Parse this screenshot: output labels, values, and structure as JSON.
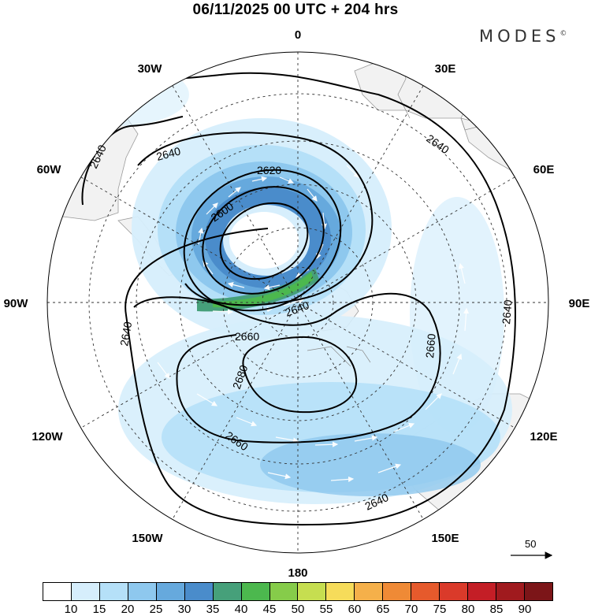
{
  "title": "06/11/2025  00 UTC  + 204 hrs",
  "brand": "MODES",
  "brand_mark": "©",
  "longitude_labels": [
    "0",
    "30E",
    "60E",
    "90E",
    "120E",
    "150E",
    "180",
    "150W",
    "120W",
    "90W",
    "60W",
    "30W"
  ],
  "contour_labels": [
    "2640",
    "2640",
    "2640",
    "2640",
    "2620",
    "2600",
    "2640",
    "2660",
    "2660",
    "2680",
    "2660",
    "2640"
  ],
  "vector_reference": {
    "value": "50",
    "icon": "arrow-right-icon"
  },
  "colorbar": {
    "labels": [
      "10",
      "15",
      "20",
      "25",
      "30",
      "35",
      "40",
      "45",
      "50",
      "55",
      "60",
      "65",
      "70",
      "75",
      "80",
      "85",
      "90"
    ],
    "colors": [
      "#ffffff",
      "#d6eefc",
      "#b5e0f8",
      "#8ec8ee",
      "#66a9dd",
      "#4a8ccb",
      "#46a07a",
      "#4cb84e",
      "#86cc4a",
      "#c6de50",
      "#f6dc5a",
      "#f5b04a",
      "#ef8a36",
      "#e65a2c",
      "#da3a2a",
      "#c41e26",
      "#a01a1e",
      "#7c1518"
    ]
  },
  "colors": {
    "ice": "#f2f2f2",
    "coast": "#9a9a9a",
    "contour": "#000000",
    "vector": "#ffffff"
  }
}
